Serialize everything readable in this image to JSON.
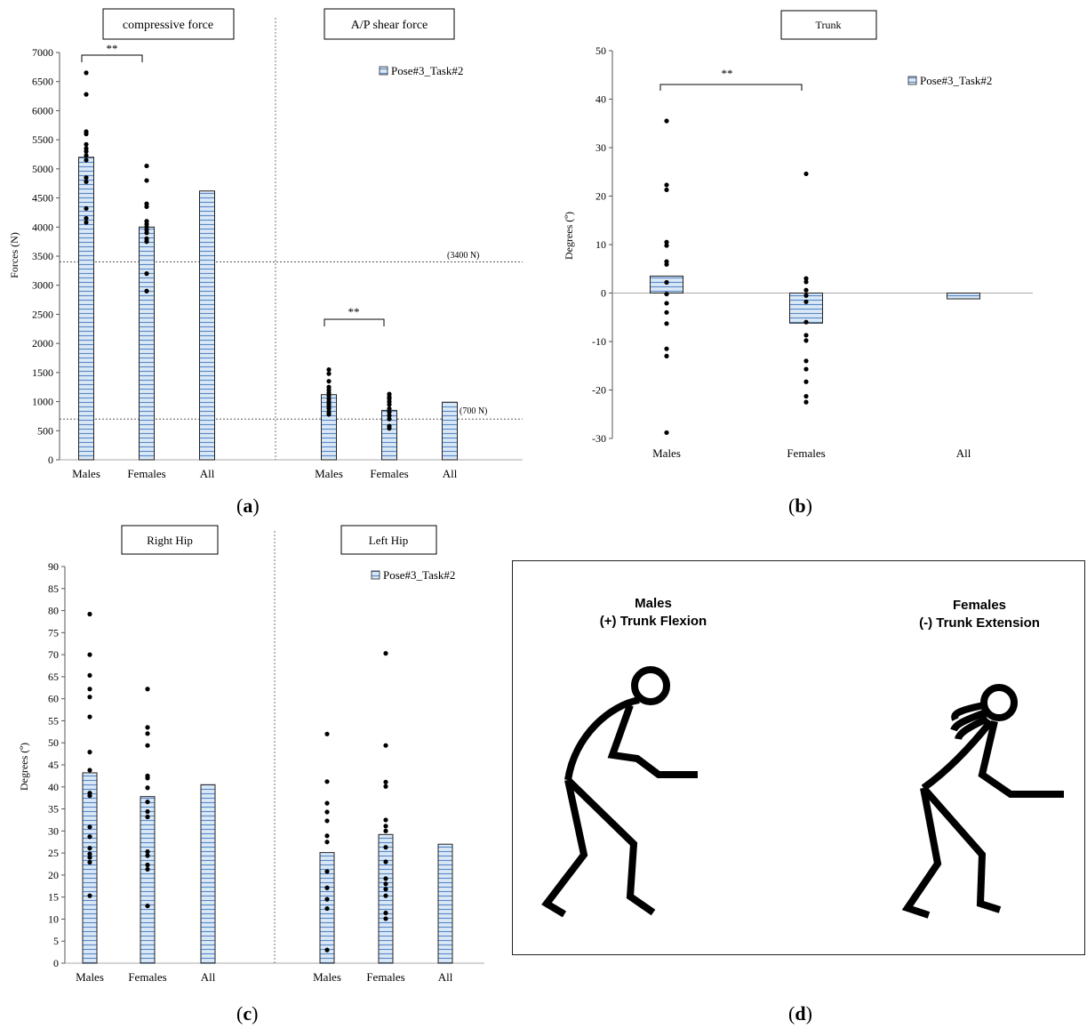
{
  "series_name": "Pose#3_Task#2",
  "colors": {
    "bar_fill": "#dbe9f6",
    "bar_hatch": "#5b8ac9",
    "bar_stroke": "#1f1f1f",
    "dot": "#000000"
  },
  "panel_a": {
    "label": "a",
    "title_left": "compressive force",
    "title_right": "A/P shear force",
    "ylabel": "Forces (N)",
    "threshold_high_label": "(3400 N)",
    "threshold_low_label": "(700 N)",
    "sig_label": "**"
  },
  "panel_b": {
    "label": "b",
    "title": "Trunk",
    "ylabel": "Degrees (º)",
    "sig_label": "**"
  },
  "panel_c": {
    "label": "c",
    "title_left": "Right Hip",
    "title_right": "Left Hip",
    "ylabel": "Degrees (º)"
  },
  "panel_d": {
    "label": "d",
    "male_line1": "Males",
    "male_line2": "(+) Trunk Flexion",
    "female_line1": "Females",
    "female_line2": "(-) Trunk Extension"
  },
  "chart_data": [
    {
      "id": "a",
      "type": "bar",
      "ylabel": "Forces (N)",
      "ylim": [
        0,
        7000
      ],
      "yticks": [
        0,
        500,
        1000,
        1500,
        2000,
        2500,
        3000,
        3500,
        4000,
        4500,
        5000,
        5500,
        6000,
        6500,
        7000
      ],
      "categories": [
        "Males",
        "Females",
        "All",
        "Males",
        "Females",
        "All"
      ],
      "groups": [
        "compressive force",
        "A/P shear force"
      ],
      "series": [
        {
          "name": "Pose#3_Task#2",
          "values": [
            5200,
            4000,
            4620,
            1120,
            850,
            990
          ]
        }
      ],
      "points": [
        [
          4080,
          4150,
          4320,
          4780,
          4850,
          5150,
          5230,
          5300,
          5350,
          5420,
          5600,
          5640,
          6280,
          6650
        ],
        [
          2900,
          3200,
          3750,
          3800,
          3900,
          3950,
          4000,
          4050,
          4100,
          4350,
          4400,
          4800,
          5050
        ],
        [],
        [
          780,
          820,
          880,
          920,
          960,
          1000,
          1050,
          1100,
          1150,
          1200,
          1250,
          1350,
          1480,
          1550
        ],
        [
          540,
          580,
          700,
          760,
          820,
          880,
          950,
          1000,
          1050,
          1080,
          1130
        ],
        []
      ],
      "reference_lines": [
        3400,
        700
      ],
      "significance": [
        [
          "Males",
          "Females",
          "compressive force"
        ],
        [
          "Males",
          "Females",
          "A/P shear force"
        ]
      ]
    },
    {
      "id": "b",
      "type": "bar",
      "title": "Trunk",
      "ylabel": "Degrees (º)",
      "ylim": [
        -30,
        50
      ],
      "yticks": [
        -30,
        -20,
        -10,
        0,
        10,
        20,
        30,
        40,
        50
      ],
      "categories": [
        "Males",
        "Females",
        "All"
      ],
      "series": [
        {
          "name": "Pose#3_Task#2",
          "values": [
            3.5,
            -6.2,
            -1.2
          ]
        }
      ],
      "points": [
        [
          35.5,
          22.3,
          21.3,
          10.5,
          9.8,
          6.5,
          5.9,
          2.2,
          -0.2,
          -2.1,
          -4,
          -6.3,
          -11.5,
          -13,
          -28.8
        ],
        [
          24.6,
          3,
          2.3,
          0.6,
          -0.5,
          -1.8,
          -6,
          -8.7,
          -9.8,
          -14,
          -15.7,
          -18.3,
          -21.3,
          -22.5
        ],
        []
      ],
      "significance": [
        [
          "Males",
          "Females"
        ]
      ]
    },
    {
      "id": "c",
      "type": "bar",
      "ylabel": "Degrees (º)",
      "ylim": [
        0,
        90
      ],
      "yticks": [
        0,
        5,
        10,
        15,
        20,
        25,
        30,
        35,
        40,
        45,
        50,
        55,
        60,
        65,
        70,
        75,
        80,
        85,
        90
      ],
      "categories": [
        "Males",
        "Females",
        "All",
        "Males",
        "Females",
        "All"
      ],
      "groups": [
        "Right Hip",
        "Left Hip"
      ],
      "series": [
        {
          "name": "Pose#3_Task#2",
          "values": [
            43.2,
            37.8,
            40.5,
            25.1,
            29.2,
            27
          ]
        }
      ],
      "points": [
        [
          79.2,
          70,
          65.3,
          62.2,
          60.4,
          55.9,
          47.9,
          43.8,
          38.6,
          38,
          30.9,
          28.7,
          26.1,
          24.8,
          24,
          22.9,
          15.3
        ],
        [
          62.2,
          53.5,
          52.1,
          49.4,
          42.5,
          42,
          39.8,
          36.6,
          34.4,
          33.2,
          25.3,
          24.4,
          22.3,
          21.3,
          13
        ],
        [],
        [
          52,
          41.2,
          36.3,
          34.3,
          32.3,
          28.9,
          27.5,
          20.8,
          17.1,
          14.5,
          12.4,
          3
        ],
        [
          70.3,
          49.4,
          41.1,
          40.1,
          32.5,
          31.1,
          30,
          26.3,
          23,
          19.2,
          18,
          16.8,
          15.3,
          11.4,
          10.1
        ],
        []
      ]
    }
  ]
}
